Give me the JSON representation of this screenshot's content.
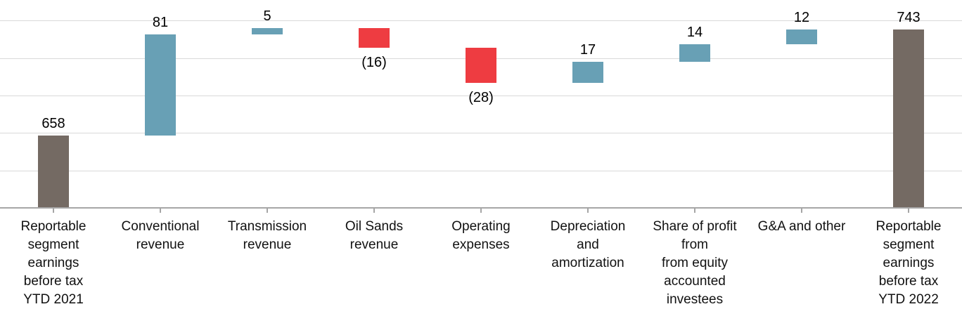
{
  "chart_data": {
    "type": "bar",
    "subtype": "waterfall",
    "title": "",
    "xlabel": "",
    "ylabel": "",
    "ylim": [
      600,
      750
    ],
    "gridline_interval": 30,
    "grid": true,
    "legend": false,
    "y_axis_tick_labels_visible": false,
    "items": [
      {
        "label_lines": "Reportable\nsegment\nearnings\nbefore tax\nYTD 2021",
        "value": 658,
        "kind": "total",
        "data_label": "658",
        "label_position": "above"
      },
      {
        "label_lines": "Conventional\nrevenue",
        "value": 81,
        "kind": "increase",
        "data_label": "81",
        "label_position": "above"
      },
      {
        "label_lines": "Transmission\nrevenue",
        "value": 5,
        "kind": "increase",
        "data_label": "5",
        "label_position": "above"
      },
      {
        "label_lines": "Oil Sands\nrevenue",
        "value": -16,
        "kind": "decrease",
        "data_label": "(16)",
        "label_position": "below"
      },
      {
        "label_lines": "Operating\nexpenses",
        "value": -28,
        "kind": "decrease",
        "data_label": "(28)",
        "label_position": "below"
      },
      {
        "label_lines": "Depreciation\nand\namortization",
        "value": 17,
        "kind": "increase",
        "data_label": "17",
        "label_position": "above"
      },
      {
        "label_lines": "Share of profit\nfrom\nfrom equity\naccounted\ninvestees",
        "value": 14,
        "kind": "increase",
        "data_label": "14",
        "label_position": "above"
      },
      {
        "label_lines": "G&A and other",
        "value": 12,
        "kind": "increase",
        "data_label": "12",
        "label_position": "above"
      },
      {
        "label_lines": "Reportable\nsegment\nearnings\nbefore tax\nYTD 2022",
        "value": 743,
        "kind": "total",
        "data_label": "743",
        "label_position": "above"
      }
    ],
    "colors": {
      "total": "#746a63",
      "increase": "#68a0b5",
      "decrease": "#ee3c41",
      "gridline": "#d9d9d9",
      "axis": "#a6a6a6",
      "tick": "#a6a6a6",
      "label_text": "#000000"
    }
  }
}
